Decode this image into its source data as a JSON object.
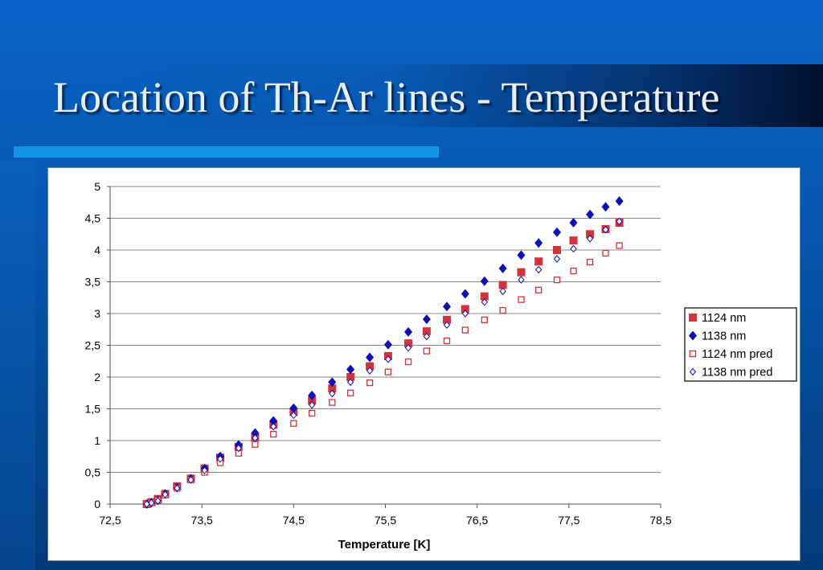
{
  "slide": {
    "title": "Location of Th-Ar lines - Temperature",
    "colors": {
      "accent_bar": "#1593e6",
      "background": "#0656b0",
      "title_text": "#e8eef6"
    }
  },
  "chart_data": {
    "type": "scatter",
    "title": "",
    "xlabel": "Temperature [K]",
    "ylabel": "",
    "xlim": [
      72.5,
      78.5
    ],
    "ylim": [
      0,
      5
    ],
    "x_ticks": [
      "72,5",
      "73,5",
      "74,5",
      "75,5",
      "76,5",
      "77,5",
      "78,5"
    ],
    "y_ticks": [
      "0",
      "0,5",
      "1",
      "1,5",
      "2",
      "2,5",
      "3",
      "3,5",
      "4",
      "4,5",
      "5"
    ],
    "grid": "horizontal",
    "legend_position": "right",
    "series": [
      {
        "name": "1124 nm",
        "marker": "square-filled",
        "color": "#d4333b",
        "points": [
          [
            72.9,
            0.0
          ],
          [
            72.95,
            0.03
          ],
          [
            73.02,
            0.08
          ],
          [
            73.1,
            0.16
          ],
          [
            73.23,
            0.28
          ],
          [
            73.38,
            0.4
          ],
          [
            73.53,
            0.56
          ],
          [
            73.7,
            0.73
          ],
          [
            73.9,
            0.9
          ],
          [
            74.08,
            1.05
          ],
          [
            74.28,
            1.25
          ],
          [
            74.5,
            1.45
          ],
          [
            74.7,
            1.63
          ],
          [
            74.92,
            1.82
          ],
          [
            75.12,
            2.0
          ],
          [
            75.33,
            2.17
          ],
          [
            75.53,
            2.33
          ],
          [
            75.75,
            2.53
          ],
          [
            75.95,
            2.72
          ],
          [
            76.17,
            2.9
          ],
          [
            76.37,
            3.07
          ],
          [
            76.58,
            3.27
          ],
          [
            76.78,
            3.45
          ],
          [
            76.98,
            3.65
          ],
          [
            77.17,
            3.82
          ],
          [
            77.37,
            4.0
          ],
          [
            77.55,
            4.15
          ],
          [
            77.73,
            4.25
          ],
          [
            77.9,
            4.33
          ],
          [
            78.05,
            4.43
          ]
        ]
      },
      {
        "name": "1138 nm",
        "marker": "diamond-filled",
        "color": "#0b10b8",
        "points": [
          [
            72.9,
            0.0
          ],
          [
            72.95,
            0.02
          ],
          [
            73.02,
            0.06
          ],
          [
            73.1,
            0.16
          ],
          [
            73.23,
            0.26
          ],
          [
            73.38,
            0.4
          ],
          [
            73.53,
            0.56
          ],
          [
            73.7,
            0.75
          ],
          [
            73.9,
            0.93
          ],
          [
            74.08,
            1.12
          ],
          [
            74.28,
            1.31
          ],
          [
            74.5,
            1.51
          ],
          [
            74.7,
            1.71
          ],
          [
            74.92,
            1.92
          ],
          [
            75.12,
            2.12
          ],
          [
            75.33,
            2.31
          ],
          [
            75.53,
            2.51
          ],
          [
            75.75,
            2.71
          ],
          [
            75.95,
            2.91
          ],
          [
            76.17,
            3.11
          ],
          [
            76.37,
            3.31
          ],
          [
            76.58,
            3.51
          ],
          [
            76.78,
            3.71
          ],
          [
            76.98,
            3.92
          ],
          [
            77.17,
            4.11
          ],
          [
            77.37,
            4.28
          ],
          [
            77.55,
            4.43
          ],
          [
            77.73,
            4.56
          ],
          [
            77.9,
            4.68
          ],
          [
            78.05,
            4.77
          ]
        ]
      },
      {
        "name": "1124 nm pred",
        "marker": "square-open",
        "color": "#d4333b",
        "points": [
          [
            72.9,
            0.0
          ],
          [
            72.95,
            0.02
          ],
          [
            73.02,
            0.06
          ],
          [
            73.1,
            0.14
          ],
          [
            73.23,
            0.25
          ],
          [
            73.38,
            0.38
          ],
          [
            73.53,
            0.5
          ],
          [
            73.7,
            0.65
          ],
          [
            73.9,
            0.8
          ],
          [
            74.08,
            0.94
          ],
          [
            74.28,
            1.1
          ],
          [
            74.5,
            1.27
          ],
          [
            74.7,
            1.43
          ],
          [
            74.92,
            1.6
          ],
          [
            75.12,
            1.75
          ],
          [
            75.33,
            1.91
          ],
          [
            75.53,
            2.08
          ],
          [
            75.75,
            2.24
          ],
          [
            75.95,
            2.41
          ],
          [
            76.17,
            2.57
          ],
          [
            76.37,
            2.74
          ],
          [
            76.58,
            2.9
          ],
          [
            76.78,
            3.05
          ],
          [
            76.98,
            3.22
          ],
          [
            77.17,
            3.37
          ],
          [
            77.37,
            3.53
          ],
          [
            77.55,
            3.67
          ],
          [
            77.73,
            3.81
          ],
          [
            77.9,
            3.95
          ],
          [
            78.05,
            4.07
          ]
        ]
      },
      {
        "name": "1138 nm pred",
        "marker": "diamond-open",
        "color": "#0b10b8",
        "points": [
          [
            72.9,
            0.0
          ],
          [
            72.95,
            0.02
          ],
          [
            73.02,
            0.05
          ],
          [
            73.1,
            0.15
          ],
          [
            73.23,
            0.25
          ],
          [
            73.38,
            0.38
          ],
          [
            73.53,
            0.53
          ],
          [
            73.7,
            0.71
          ],
          [
            73.9,
            0.88
          ],
          [
            74.08,
            1.04
          ],
          [
            74.28,
            1.22
          ],
          [
            74.5,
            1.4
          ],
          [
            74.7,
            1.56
          ],
          [
            74.92,
            1.74
          ],
          [
            75.12,
            1.92
          ],
          [
            75.33,
            2.1
          ],
          [
            75.53,
            2.28
          ],
          [
            75.75,
            2.46
          ],
          [
            75.95,
            2.64
          ],
          [
            76.17,
            2.82
          ],
          [
            76.37,
            3.0
          ],
          [
            76.58,
            3.18
          ],
          [
            76.78,
            3.35
          ],
          [
            76.98,
            3.53
          ],
          [
            77.17,
            3.69
          ],
          [
            77.37,
            3.86
          ],
          [
            77.55,
            4.02
          ],
          [
            77.73,
            4.18
          ],
          [
            77.9,
            4.32
          ],
          [
            78.05,
            4.45
          ]
        ]
      }
    ]
  }
}
